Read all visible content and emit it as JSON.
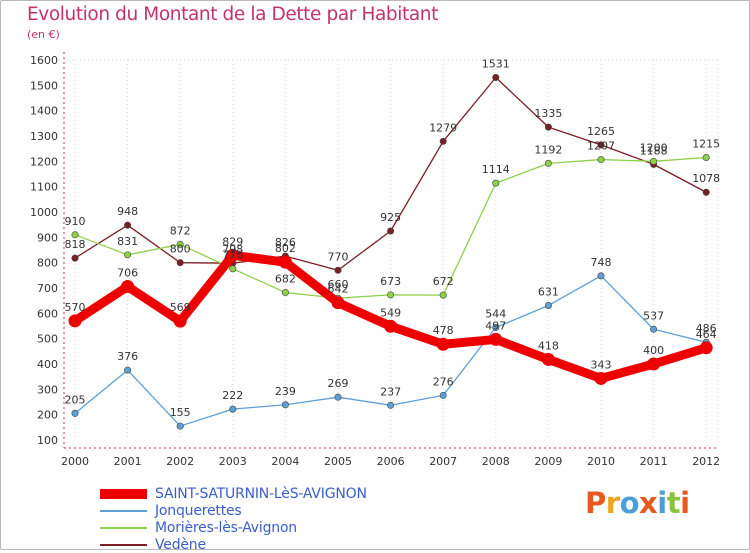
{
  "title": "Evolution du Montant de la Dette par Habitant",
  "subtitle": "(en €)",
  "brand": {
    "letters": [
      "P",
      "r",
      "o",
      "x",
      "i",
      "t",
      "i"
    ],
    "colors": [
      "#e8591f",
      "#f2a420",
      "#4a9fd8",
      "#e8591f",
      "#4a9fd8",
      "#8ac43f",
      "#e8591f"
    ]
  },
  "chart_data": {
    "type": "line",
    "title": "Evolution du Montant de la Dette par Habitant",
    "ylabel": "(en €)",
    "xlabel": "",
    "x": [
      "2000",
      "2001",
      "2002",
      "2003",
      "2004",
      "2005",
      "2006",
      "2007",
      "2008",
      "2009",
      "2010",
      "2011",
      "2012"
    ],
    "ylim": [
      100,
      1600
    ],
    "yticks": [
      "100",
      "200",
      "300",
      "400",
      "500",
      "600",
      "700",
      "800",
      "900",
      "1000",
      "1100",
      "1200",
      "1300",
      "1400",
      "1500",
      "1600"
    ],
    "grid": "vertical dotted",
    "legend_position": "bottom-left",
    "series": [
      {
        "name": "SAINT-SATURNIN-LèS-AVIGNON",
        "color": "#ee0000",
        "values": [
          570,
          706,
          569,
          829,
          802,
          642,
          549,
          478,
          497,
          418,
          343,
          400,
          464
        ],
        "labels": [
          "570",
          "706",
          "569",
          "829",
          "802",
          "642",
          "549",
          "478",
          "497",
          "418",
          "343",
          "400",
          "464"
        ]
      },
      {
        "name": "Jonquerettes",
        "color": "#5e9fd5",
        "values": [
          205,
          376,
          155,
          222,
          239,
          269,
          237,
          276,
          544,
          631,
          748,
          537,
          486
        ],
        "labels": [
          "205",
          "376",
          "155",
          "222",
          "239",
          "269",
          "237",
          "276",
          "544",
          "631",
          "748",
          "537",
          "486"
        ]
      },
      {
        "name": "Morières-lès-Avignon",
        "color": "#8ed04a",
        "values": [
          910,
          831,
          872,
          776,
          682,
          660,
          673,
          672,
          1114,
          1192,
          1207,
          1200,
          1215
        ],
        "labels": [
          "910",
          "831",
          "872",
          "776",
          "682",
          "660",
          "673",
          "672",
          "1114",
          "1192",
          "1207",
          "1200",
          "1215"
        ]
      },
      {
        "name": "Vedène",
        "color": "#7b1e26",
        "values": [
          818,
          948,
          800,
          798,
          826,
          770,
          925,
          1279,
          1531,
          1335,
          1265,
          1188,
          1078
        ],
        "labels": [
          "818",
          "948",
          "800",
          "798",
          "826",
          "770",
          "925",
          "1279",
          "1531",
          "1335",
          "1265",
          "1188",
          "1078"
        ]
      }
    ]
  }
}
